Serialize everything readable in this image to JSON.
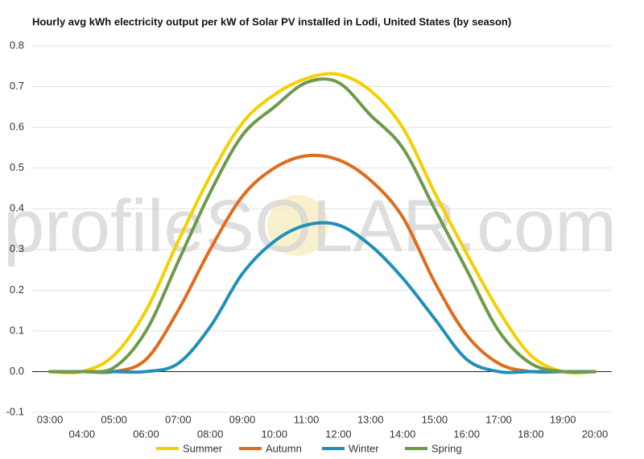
{
  "chart_data": {
    "type": "line",
    "title": "Hourly avg kWh electricity output per kW of Solar PV installed in Lodi, United States (by season)",
    "watermark": "profileSOLAR.com",
    "categories": [
      "03:00",
      "04:00",
      "05:00",
      "06:00",
      "07:00",
      "08:00",
      "09:00",
      "10:00",
      "11:00",
      "12:00",
      "13:00",
      "14:00",
      "15:00",
      "16:00",
      "17:00",
      "18:00",
      "19:00",
      "20:00"
    ],
    "series": [
      {
        "name": "Summer",
        "color": "#f5d000",
        "values": [
          0,
          0,
          0.04,
          0.15,
          0.32,
          0.48,
          0.61,
          0.68,
          0.72,
          0.73,
          0.69,
          0.6,
          0.44,
          0.29,
          0.15,
          0.04,
          0,
          0
        ]
      },
      {
        "name": "Autumn",
        "color": "#e06c1c",
        "values": [
          0,
          0,
          0,
          0.03,
          0.15,
          0.3,
          0.43,
          0.5,
          0.53,
          0.52,
          0.47,
          0.38,
          0.22,
          0.09,
          0.02,
          0,
          0,
          0
        ]
      },
      {
        "name": "Winter",
        "color": "#2190b8",
        "values": [
          0,
          0,
          0,
          0,
          0.02,
          0.11,
          0.24,
          0.32,
          0.36,
          0.36,
          0.31,
          0.23,
          0.13,
          0.03,
          0,
          0,
          0,
          0
        ]
      },
      {
        "name": "Spring",
        "color": "#6e9a4c",
        "values": [
          0,
          0,
          0.01,
          0.1,
          0.27,
          0.44,
          0.58,
          0.65,
          0.71,
          0.71,
          0.63,
          0.55,
          0.4,
          0.25,
          0.1,
          0.02,
          0,
          0
        ]
      }
    ],
    "ylim": [
      -0.1,
      0.8
    ],
    "yticks": [
      -0.1,
      {
        "value": 0,
        "label": "0.0"
      },
      0.1,
      0.2,
      0.3,
      0.4,
      0.5,
      0.6,
      0.7,
      0.8
    ],
    "grid": true
  }
}
